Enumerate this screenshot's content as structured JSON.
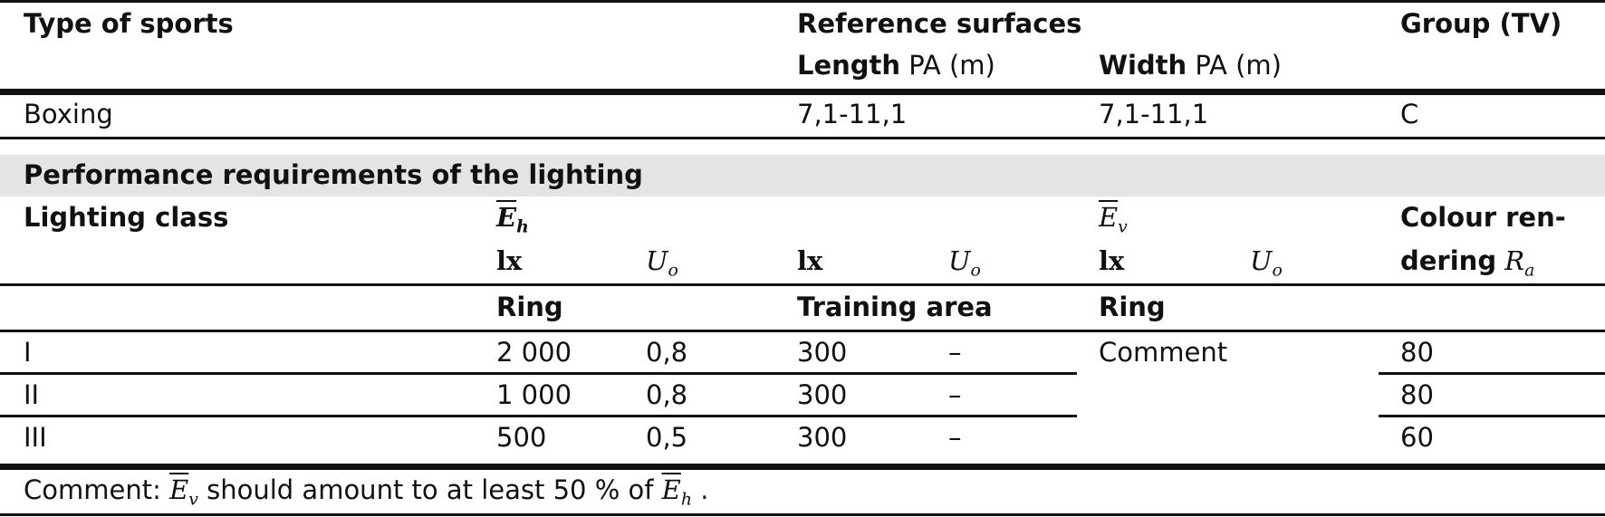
{
  "head": {
    "type_of_sports": "Type of sports",
    "reference_surfaces": "Reference surfaces",
    "group_tv": "Group (TV)",
    "length_bold": "Length",
    "length_rest": "PA (m)",
    "width_bold": "Width",
    "width_rest": "PA (m)"
  },
  "sport_row": {
    "sport": "Boxing",
    "length": "7,1-11,1",
    "width": "7,1-11,1",
    "group": "C"
  },
  "performance": {
    "title": "Performance requirements of the lighting",
    "lighting_class": "Lighting class",
    "eh_symbol": "E",
    "eh_sub": "h",
    "ev_symbol": "E",
    "ev_sub": "v",
    "lx": "lx",
    "uo_symbol": "U",
    "uo_sub": "o",
    "colour_rendering_1": "Colour ren-",
    "colour_rendering_2": "dering",
    "ra_symbol": "R",
    "ra_sub": "a",
    "ring_1": "Ring",
    "training_area": "Training area",
    "ring_2": "Ring"
  },
  "rows": [
    {
      "class": "I",
      "eh_lx": "2 000",
      "eh_uo": "0,8",
      "tr_lx": "300",
      "tr_uo": "–",
      "ra": "80"
    },
    {
      "class": "II",
      "eh_lx": "1 000",
      "eh_uo": "0,8",
      "tr_lx": "300",
      "tr_uo": "–",
      "ra": "80"
    },
    {
      "class": "III",
      "eh_lx": "500",
      "eh_uo": "0,5",
      "tr_lx": "300",
      "tr_uo": "–",
      "ra": "60"
    }
  ],
  "ev_comment": "Comment",
  "footnote": {
    "prefix": "Comment:",
    "ev_symbol": "E",
    "ev_sub": "v",
    "middle": "should amount to at least 50 % of",
    "eh_symbol": "E",
    "eh_sub": "h",
    "end": "."
  }
}
